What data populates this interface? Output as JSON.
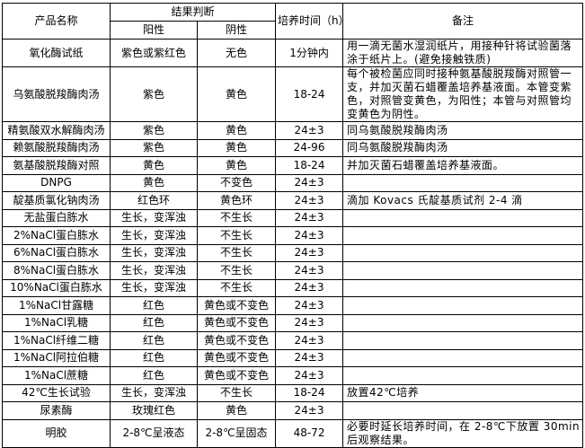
{
  "headers": {
    "product": "产品名称",
    "result": "结果判断",
    "positive": "阳性",
    "negative": "阴性",
    "time": "培养时间（h）",
    "remark": "备注"
  },
  "rows": [
    {
      "name": "氧化酶试纸",
      "pos": "紫色或紫红色",
      "neg": "无色",
      "time": "1分钟内",
      "remark": "用一滴无菌水湿润纸片，用接种针将试验菌落涂于纸片上。(避免接触铁质)"
    },
    {
      "name": "乌氨酸脱羧酶肉汤",
      "pos": "紫色",
      "neg": "黄色",
      "time": "18-24",
      "remark": "每个被检菌应同时接种氨基酸脱羧酶对照管一支，并加灭菌石蜡覆盖培养基液面。本管变紫色，对照管变黄色，为阳性；本管与对照管均变黄色为阴性。"
    },
    {
      "name": "精氨酸双水解酶肉汤",
      "pos": "紫色",
      "neg": "黄色",
      "time": "24±3",
      "remark": "同乌氨酸脱羧酶肉汤"
    },
    {
      "name": "赖氨酸脱羧酶肉汤",
      "pos": "紫色",
      "neg": "黄色",
      "time": "24-96",
      "remark": "同乌氨酸脱羧酶肉汤"
    },
    {
      "name": "氨基酸脱羧酶对照",
      "pos": "黄色",
      "neg": "黄色",
      "time": "18-24",
      "remark": "并加灭菌石蜡覆盖培养基液面。"
    },
    {
      "name": "DNPG",
      "pos": "黄色",
      "neg": "不变色",
      "time": "24±3",
      "remark": ""
    },
    {
      "name": "靛基质氯化钠肉汤",
      "pos": "红色环",
      "neg": "黄色环",
      "time": "24±3",
      "remark": "滴加 Kovacs 氏靛基质试剂 2-4 滴"
    },
    {
      "name": "无盐蛋白胨水",
      "pos": "生长，变浑浊",
      "neg": "不生长",
      "time": "24±3",
      "remark": ""
    },
    {
      "name": "2%NaCl蛋白胨水",
      "pos": "生长，变浑浊",
      "neg": "不生长",
      "time": "24±3",
      "remark": ""
    },
    {
      "name": "6%NaCl蛋白胨水",
      "pos": "生长，变浑浊",
      "neg": "不生长",
      "time": "24±3",
      "remark": ""
    },
    {
      "name": "8%NaCl蛋白胨水",
      "pos": "生长，变浑浊",
      "neg": "不生长",
      "time": "24±3",
      "remark": ""
    },
    {
      "name": "10%NaCl蛋白胨水",
      "pos": "生长，变浑浊",
      "neg": "不生长",
      "time": "24±3",
      "remark": ""
    },
    {
      "name": "1%NaCl甘露糖",
      "pos": "红色",
      "neg": "黄色或不变色",
      "time": "24±3",
      "remark": ""
    },
    {
      "name": "1%NaCl乳糖",
      "pos": "红色",
      "neg": "黄色或不变色",
      "time": "24±3",
      "remark": ""
    },
    {
      "name": "1%NaCl纤维二糖",
      "pos": "红色",
      "neg": "黄色或不变色",
      "time": "24±3",
      "remark": ""
    },
    {
      "name": "1%NaCl阿拉伯糖",
      "pos": "红色",
      "neg": "黄色或不变色",
      "time": "24±3",
      "remark": ""
    },
    {
      "name": "1%NaCl蔗糖",
      "pos": "红色",
      "neg": "黄色或不变色",
      "time": "24±3",
      "remark": ""
    },
    {
      "name": "42℃生长试验",
      "pos": "生长，变浑浊",
      "neg": "不生长",
      "time": "18-24",
      "remark": "放置42℃培养"
    },
    {
      "name": "尿素酶",
      "pos": "玫瑰红色",
      "neg": "黄色",
      "time": "24±3",
      "remark": ""
    },
    {
      "name": "明胶",
      "pos": "2-8℃呈液态",
      "neg": "2-8℃呈固态",
      "time": "48-72",
      "remark": "必要时延长培养时间，在 2-8℃下放置 30min 后观察结果。"
    }
  ]
}
